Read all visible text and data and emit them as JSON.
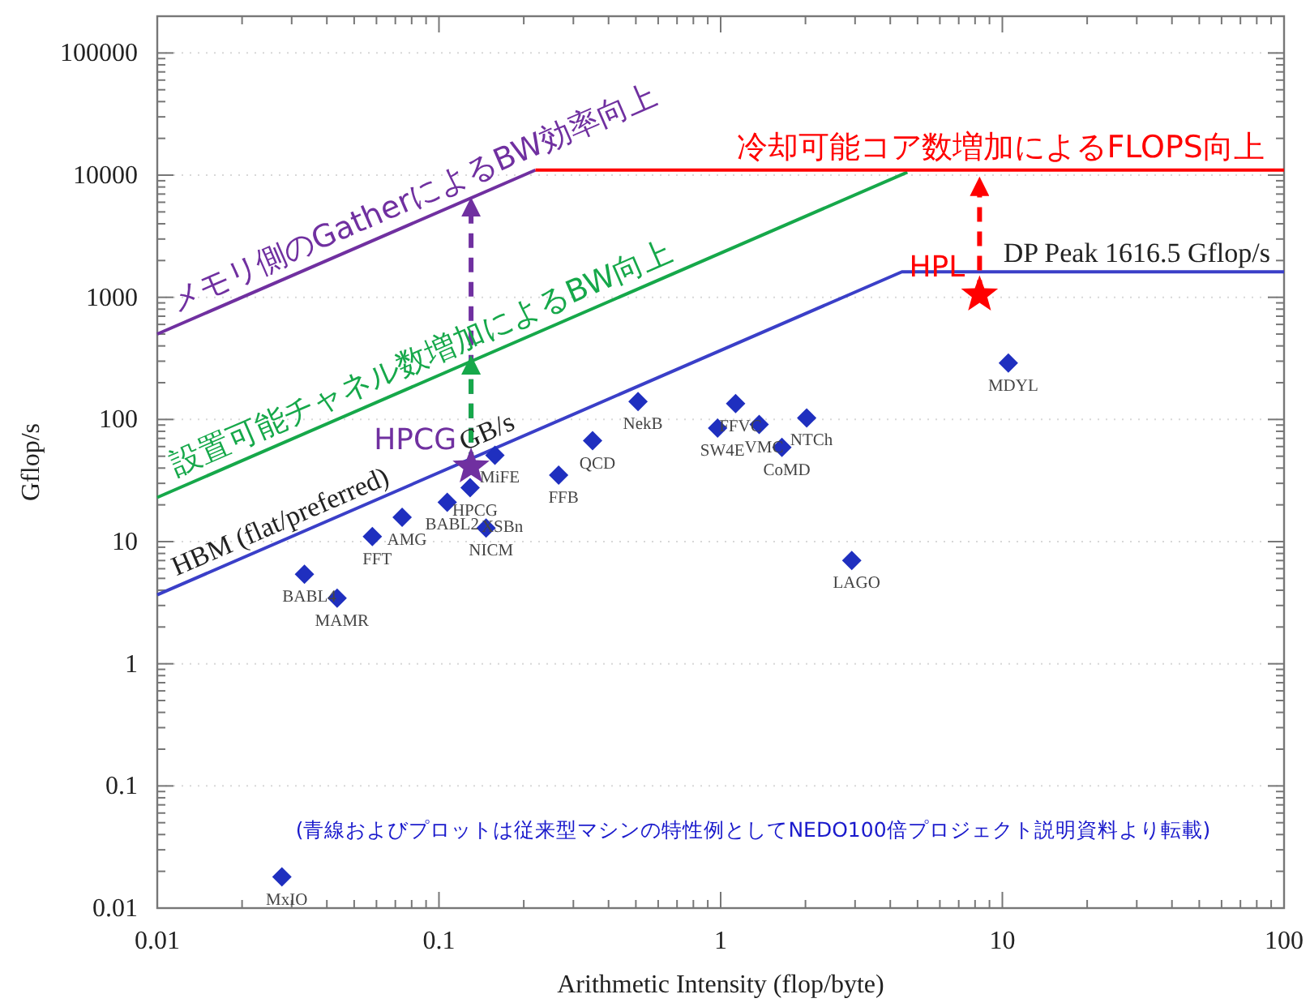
{
  "chart_data": {
    "type": "scatter",
    "xlabel": "Arithmetic Intensity (flop/byte)",
    "ylabel": "Gflop/s",
    "log": "xy",
    "xlim": [
      0.01,
      100
    ],
    "ylim": [
      0.01,
      200000
    ],
    "xticks": [
      0.01,
      0.1,
      1,
      10,
      100
    ],
    "yticks": [
      0.01,
      0.1,
      1,
      10,
      100,
      1000,
      10000,
      100000
    ],
    "grid": "y",
    "series": [
      {
        "type": "line",
        "color": "#3a3fc8",
        "x": [
          0.01,
          4.4,
          100
        ],
        "values": [
          3.67,
          1616.5,
          1616.5
        ]
      },
      {
        "type": "line",
        "name": "設置可能チャネル数増加によるBW向上",
        "color": "#16a84a",
        "x": [
          0.01,
          4.6
        ],
        "values": [
          23,
          10580
        ]
      },
      {
        "type": "line",
        "name": "メモリ側のGatherによるBW効率向上",
        "color": "#7030a0",
        "x": [
          0.01,
          0.22
        ],
        "values": [
          500,
          11000
        ]
      },
      {
        "type": "line",
        "name": "冷却可能コア数増加によるFLOPS向上",
        "color": "#ff0000",
        "x": [
          0.22,
          100
        ],
        "values": [
          11000,
          11000
        ]
      },
      {
        "type": "line",
        "line_style": "dashed",
        "color": "#7030a0",
        "x": [
          0.13,
          0.13
        ],
        "values": [
          41,
          5500
        ]
      },
      {
        "type": "line",
        "line_style": "dashed",
        "color": "#16a84a",
        "x": [
          0.13,
          0.13
        ],
        "values": [
          41,
          280
        ]
      },
      {
        "type": "line",
        "line_style": "dashed",
        "color": "#ff0000",
        "x": [
          8.3,
          8.3
        ],
        "values": [
          1050,
          8100
        ]
      },
      {
        "type": "scatter",
        "marker": "diamond",
        "color": "#1f2fbf",
        "x": [
          0.0277,
          0.0333,
          0.0435,
          0.058,
          0.074,
          0.107,
          0.129,
          0.158,
          0.147,
          0.266,
          0.351,
          0.509,
          0.975,
          1.13,
          1.37,
          1.65,
          2.02,
          2.92,
          10.5
        ],
        "values": [
          0.018,
          5.4,
          3.45,
          11,
          15.8,
          21,
          27.6,
          51,
          12.9,
          35,
          67,
          140,
          85,
          135,
          91,
          59,
          103,
          7,
          290
        ]
      },
      {
        "type": "scatter",
        "marker": "star",
        "name": "HPCG",
        "color": "#7030a0",
        "x": [
          0.13
        ],
        "values": [
          41
        ]
      },
      {
        "type": "scatter",
        "marker": "star",
        "name": "HPL",
        "color": "#ff0000",
        "x": [
          8.3
        ],
        "values": [
          1050
        ]
      }
    ],
    "annotations": [
      {
        "text": "MxIO",
        "x": 0.0277,
        "y": 0.018
      },
      {
        "text": "BABL4",
        "x": 0.0333,
        "y": 5.4
      },
      {
        "text": "MAMR",
        "x": 0.0435,
        "y": 3.45
      },
      {
        "text": "FFT",
        "x": 0.058,
        "y": 11
      },
      {
        "text": "AMG",
        "x": 0.074,
        "y": 15.8
      },
      {
        "text": "BABL2",
        "x": 0.107,
        "y": 21
      },
      {
        "text": "HPCG",
        "x": 0.129,
        "y": 27.6
      },
      {
        "text": "XSBn",
        "x": 0.129,
        "y": 27.6
      },
      {
        "text": "MiFE",
        "x": 0.158,
        "y": 51
      },
      {
        "text": "NICM",
        "x": 0.147,
        "y": 12.9
      },
      {
        "text": "FFB",
        "x": 0.266,
        "y": 35
      },
      {
        "text": "QCD",
        "x": 0.351,
        "y": 67
      },
      {
        "text": "NekB",
        "x": 0.509,
        "y": 140
      },
      {
        "text": "SW4E",
        "x": 0.975,
        "y": 85
      },
      {
        "text": "FFVC",
        "x": 1.13,
        "y": 135
      },
      {
        "text": "VMC",
        "x": 1.37,
        "y": 91
      },
      {
        "text": "CoMD",
        "x": 1.65,
        "y": 59
      },
      {
        "text": "NTCh",
        "x": 2.02,
        "y": 103
      },
      {
        "text": "LAGO",
        "x": 2.92,
        "y": 7
      },
      {
        "text": "MDYL",
        "x": 10.5,
        "y": 290
      },
      {
        "text": "HBM (flat/preferred)",
        "x": 0.029,
        "y": 10.6
      },
      {
        "text": "GB/s",
        "x": 0.157,
        "y": 57.6
      },
      {
        "text": "DP Peak 1616.5 Gflop/s",
        "x": 30,
        "y": 1616.5
      },
      "(青線およびプロットは従来型マシンの特性例としてNEDO100倍プロジェクト説明資料より転載)"
    ]
  }
}
